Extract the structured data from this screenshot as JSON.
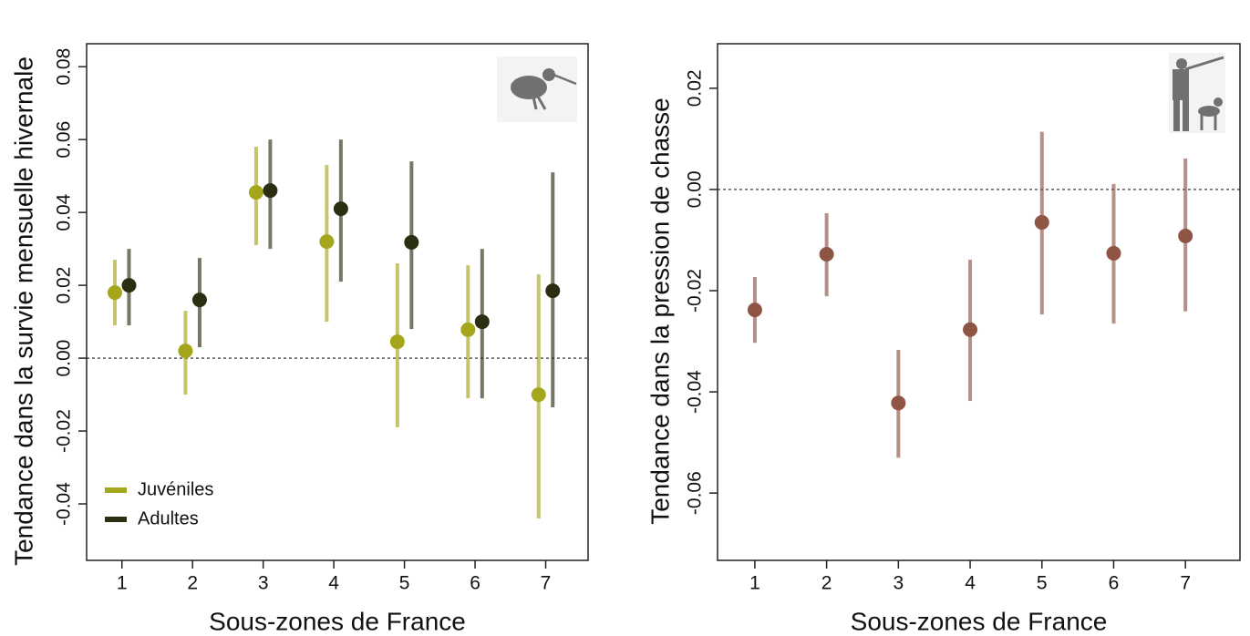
{
  "chart_data": [
    {
      "type": "errorbar",
      "x_label": "Sous-zones de France",
      "y_label": "Tendance dans la survie mensuelle hivernale",
      "categories": [
        1,
        2,
        3,
        4,
        5,
        6,
        7
      ],
      "xlim": [
        0.5,
        7.6
      ],
      "ylim": [
        -0.0555,
        0.0863
      ],
      "yticks": [
        -0.04,
        -0.02,
        {
          "value": 0,
          "label": "0.00"
        },
        0.02,
        0.04,
        0.06,
        0.08
      ],
      "hline": 0,
      "legend": "bottom-left",
      "series": [
        {
          "name": "Juvéniles",
          "color": "#a4a61c",
          "values": [
            0.018,
            0.002,
            0.0455,
            0.032,
            0.0045,
            0.0078,
            -0.01
          ],
          "lower": [
            0.009,
            -0.01,
            0.031,
            0.01,
            -0.019,
            -0.011,
            -0.044
          ],
          "upper": [
            0.027,
            0.013,
            0.058,
            0.053,
            0.026,
            0.0255,
            0.023
          ]
        },
        {
          "name": "Adultes",
          "color": "#2c2e12",
          "values": [
            0.02,
            0.016,
            0.046,
            0.041,
            0.0318,
            0.01,
            0.0185
          ],
          "lower": [
            0.009,
            0.003,
            0.03,
            0.021,
            0.008,
            -0.011,
            -0.0135
          ],
          "upper": [
            0.03,
            0.0275,
            0.06,
            0.06,
            0.054,
            0.03,
            0.051
          ]
        }
      ]
    },
    {
      "type": "errorbar",
      "x_label": "Sous-zones de France",
      "y_label": "Tendance dans la pression de chasse",
      "categories": [
        1,
        2,
        3,
        4,
        5,
        6,
        7
      ],
      "xlim": [
        0.48,
        7.76
      ],
      "ylim": [
        -0.0733,
        0.0288
      ],
      "yticks": [
        -0.06,
        -0.04,
        -0.02,
        {
          "value": 0,
          "label": "0.00"
        },
        0.02
      ],
      "hline": 0,
      "series": [
        {
          "color": "#8e5545",
          "values": [
            -0.0238,
            -0.0128,
            -0.0422,
            -0.0277,
            -0.0065,
            -0.0126,
            -0.0092
          ],
          "lower": [
            -0.0303,
            -0.0211,
            -0.053,
            -0.0418,
            -0.0247,
            -0.0265,
            -0.0241
          ],
          "upper": [
            -0.0173,
            -0.0047,
            -0.0317,
            -0.0139,
            0.0114,
            0.0011,
            0.0061
          ]
        }
      ]
    }
  ]
}
